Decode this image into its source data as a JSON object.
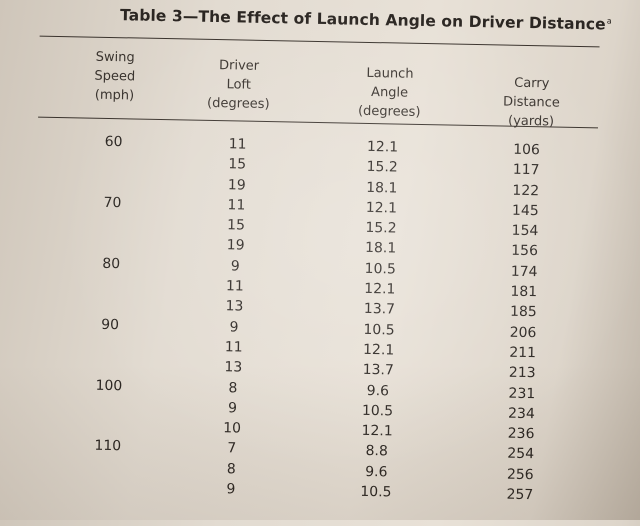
{
  "table": {
    "title": "Table 3—The Effect of Launch Angle on Driver Distance",
    "title_footnote_marker": "a",
    "headers": {
      "swing_speed": [
        "Swing",
        "Speed",
        "(mph)"
      ],
      "driver_loft": [
        "Driver",
        "Loft",
        "(degrees)"
      ],
      "launch_angle": [
        "Launch",
        "Angle",
        "(degrees)"
      ],
      "carry_distance": [
        "Carry",
        "Distance",
        "(yards)"
      ]
    },
    "rows": [
      {
        "speed": "60",
        "loft": "11",
        "angle": "12.1",
        "carry": "106"
      },
      {
        "speed": "",
        "loft": "15",
        "angle": "15.2",
        "carry": "117"
      },
      {
        "speed": "",
        "loft": "19",
        "angle": "18.1",
        "carry": "122"
      },
      {
        "speed": "70",
        "loft": "11",
        "angle": "12.1",
        "carry": "145"
      },
      {
        "speed": "",
        "loft": "15",
        "angle": "15.2",
        "carry": "154"
      },
      {
        "speed": "",
        "loft": "19",
        "angle": "18.1",
        "carry": "156"
      },
      {
        "speed": "80",
        "loft": "9",
        "angle": "10.5",
        "carry": "174"
      },
      {
        "speed": "",
        "loft": "11",
        "angle": "12.1",
        "carry": "181"
      },
      {
        "speed": "",
        "loft": "13",
        "angle": "13.7",
        "carry": "185"
      },
      {
        "speed": "90",
        "loft": "9",
        "angle": "10.5",
        "carry": "206"
      },
      {
        "speed": "",
        "loft": "11",
        "angle": "12.1",
        "carry": "211"
      },
      {
        "speed": "",
        "loft": "13",
        "angle": "13.7",
        "carry": "213"
      },
      {
        "speed": "100",
        "loft": "8",
        "angle": "9.6",
        "carry": "231"
      },
      {
        "speed": "",
        "loft": "9",
        "angle": "10.5",
        "carry": "234"
      },
      {
        "speed": "",
        "loft": "10",
        "angle": "12.1",
        "carry": "236"
      },
      {
        "speed": "110",
        "loft": "7",
        "angle": "8.8",
        "carry": "254"
      },
      {
        "speed": "",
        "loft": "8",
        "angle": "9.6",
        "carry": "256"
      },
      {
        "speed": "",
        "loft": "9",
        "angle": "10.5",
        "carry": "257"
      }
    ]
  }
}
